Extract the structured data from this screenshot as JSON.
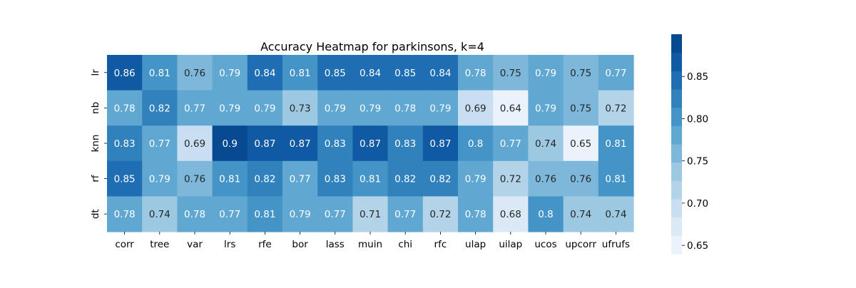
{
  "chart_data": {
    "type": "heatmap",
    "title": "Accuracy Heatmap for parkinsons, k=4",
    "xlabel": "",
    "ylabel": "",
    "x_categories": [
      "corr",
      "tree",
      "var",
      "lrs",
      "rfe",
      "bor",
      "lass",
      "muin",
      "chi",
      "rfc",
      "ulap",
      "uilap",
      "ucos",
      "upcorr",
      "ufrufs"
    ],
    "y_categories": [
      "lr",
      "nb",
      "knn",
      "rf",
      "dt"
    ],
    "values": [
      [
        0.86,
        0.81,
        0.76,
        0.79,
        0.84,
        0.81,
        0.85,
        0.84,
        0.85,
        0.84,
        0.78,
        0.75,
        0.79,
        0.75,
        0.77
      ],
      [
        0.78,
        0.82,
        0.77,
        0.79,
        0.79,
        0.73,
        0.79,
        0.79,
        0.78,
        0.79,
        0.69,
        0.64,
        0.79,
        0.75,
        0.72
      ],
      [
        0.83,
        0.77,
        0.69,
        0.9,
        0.87,
        0.87,
        0.83,
        0.87,
        0.83,
        0.87,
        0.8,
        0.77,
        0.74,
        0.65,
        0.81
      ],
      [
        0.85,
        0.79,
        0.76,
        0.81,
        0.82,
        0.77,
        0.83,
        0.81,
        0.82,
        0.82,
        0.79,
        0.72,
        0.76,
        0.76,
        0.81
      ],
      [
        0.78,
        0.74,
        0.78,
        0.77,
        0.81,
        0.79,
        0.77,
        0.71,
        0.77,
        0.72,
        0.78,
        0.68,
        0.8,
        0.74,
        0.74
      ]
    ],
    "colorbar": {
      "range": [
        0.64,
        0.9
      ],
      "ticks": [
        0.65,
        0.7,
        0.75,
        0.8,
        0.85
      ],
      "tick_labels": [
        "0.65",
        "0.70",
        "0.75",
        "0.80",
        "0.85"
      ],
      "colormap": "Blues",
      "discrete_levels": 12
    },
    "annotations": true,
    "grid": false
  },
  "colors": {
    "palette": [
      "#eaf2fb",
      "#dbe9f6",
      "#cadef1",
      "#b3d3e8",
      "#9cc9e1",
      "#7db8da",
      "#60a7d2",
      "#4594c7",
      "#3181bd",
      "#1f6eb3",
      "#0f5aa3",
      "#084a91"
    ],
    "text_dark": "#262626",
    "text_light": "#ffffff"
  }
}
